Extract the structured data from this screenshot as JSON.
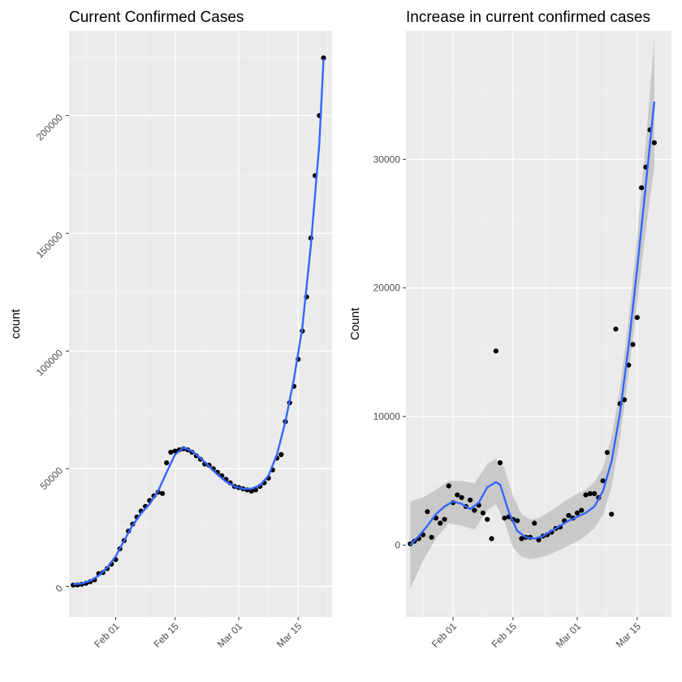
{
  "chart_data": [
    {
      "type": "scatter",
      "title": "Current Confirmed Cases",
      "xlabel": "",
      "ylabel": "count",
      "x_axis_type": "date",
      "xlim": [
        "2020-01-21",
        "2020-03-23"
      ],
      "ylim": [
        -13000,
        236000
      ],
      "x_ticks": [
        {
          "date": "2020-02-01",
          "label": "Feb 01"
        },
        {
          "date": "2020-02-15",
          "label": "Feb 15"
        },
        {
          "date": "2020-03-01",
          "label": "Mar 01"
        },
        {
          "date": "2020-03-15",
          "label": "Mar 15"
        }
      ],
      "y_ticks": [
        {
          "value": 0,
          "label": "0"
        },
        {
          "value": 50000,
          "label": "50000"
        },
        {
          "value": 100000,
          "label": "100000"
        },
        {
          "value": 150000,
          "label": "150000"
        },
        {
          "value": 200000,
          "label": "200000"
        }
      ],
      "background": "#ebebeb",
      "grid": true,
      "smooth_color": "#3366ff",
      "point_color": "#000000",
      "points": [
        [
          "2020-01-22",
          600
        ],
        [
          "2020-01-23",
          640
        ],
        [
          "2020-01-24",
          900
        ],
        [
          "2020-01-25",
          1350
        ],
        [
          "2020-01-26",
          2000
        ],
        [
          "2020-01-27",
          2800
        ],
        [
          "2020-01-28",
          5400
        ],
        [
          "2020-01-29",
          5900
        ],
        [
          "2020-01-30",
          7600
        ],
        [
          "2020-01-31",
          9500
        ],
        [
          "2020-02-01",
          11400
        ],
        [
          "2020-02-02",
          16000
        ],
        [
          "2020-02-03",
          19500
        ],
        [
          "2020-02-04",
          23500
        ],
        [
          "2020-02-05",
          26500
        ],
        [
          "2020-02-06",
          29500
        ],
        [
          "2020-02-07",
          32000
        ],
        [
          "2020-02-08",
          34000
        ],
        [
          "2020-02-09",
          36500
        ],
        [
          "2020-02-10",
          38500
        ],
        [
          "2020-02-11",
          40000
        ],
        [
          "2020-02-12",
          39500
        ],
        [
          "2020-02-13",
          52500
        ],
        [
          "2020-02-14",
          57000
        ],
        [
          "2020-02-15",
          57500
        ],
        [
          "2020-02-16",
          58000
        ],
        [
          "2020-02-17",
          58500
        ],
        [
          "2020-02-18",
          58000
        ],
        [
          "2020-02-19",
          57000
        ],
        [
          "2020-02-20",
          55500
        ],
        [
          "2020-02-21",
          54000
        ],
        [
          "2020-02-22",
          52000
        ],
        [
          "2020-02-23",
          51500
        ],
        [
          "2020-02-24",
          50000
        ],
        [
          "2020-02-25",
          48500
        ],
        [
          "2020-02-26",
          47000
        ],
        [
          "2020-02-27",
          45500
        ],
        [
          "2020-02-28",
          44000
        ],
        [
          "2020-02-29",
          42500
        ],
        [
          "2020-03-01",
          42000
        ],
        [
          "2020-03-02",
          41500
        ],
        [
          "2020-03-03",
          41000
        ],
        [
          "2020-03-04",
          40500
        ],
        [
          "2020-03-05",
          41000
        ],
        [
          "2020-03-06",
          42500
        ],
        [
          "2020-03-07",
          44000
        ],
        [
          "2020-03-08",
          46000
        ],
        [
          "2020-03-09",
          49500
        ],
        [
          "2020-03-10",
          54500
        ],
        [
          "2020-03-11",
          56000
        ],
        [
          "2020-03-12",
          70000
        ],
        [
          "2020-03-13",
          78000
        ],
        [
          "2020-03-14",
          85000
        ],
        [
          "2020-03-15",
          96500
        ],
        [
          "2020-03-16",
          108500
        ],
        [
          "2020-03-17",
          123000
        ],
        [
          "2020-03-18",
          148000
        ],
        [
          "2020-03-19",
          174500
        ],
        [
          "2020-03-20",
          200000
        ],
        [
          "2020-03-21",
          224500
        ]
      ],
      "smooth": [
        [
          "2020-01-22",
          1000
        ],
        [
          "2020-01-24",
          1200
        ],
        [
          "2020-01-26",
          2400
        ],
        [
          "2020-01-28",
          4600
        ],
        [
          "2020-01-30",
          8000
        ],
        [
          "2020-02-01",
          12800
        ],
        [
          "2020-02-03",
          19500
        ],
        [
          "2020-02-05",
          26000
        ],
        [
          "2020-02-07",
          31000
        ],
        [
          "2020-02-09",
          35000
        ],
        [
          "2020-02-11",
          40500
        ],
        [
          "2020-02-13",
          48500
        ],
        [
          "2020-02-15",
          56000
        ],
        [
          "2020-02-17",
          59000
        ],
        [
          "2020-02-19",
          57500
        ],
        [
          "2020-02-21",
          54500
        ],
        [
          "2020-02-23",
          51000
        ],
        [
          "2020-02-25",
          47500
        ],
        [
          "2020-02-27",
          44500
        ],
        [
          "2020-02-29",
          42500
        ],
        [
          "2020-03-02",
          41500
        ],
        [
          "2020-03-04",
          41500
        ],
        [
          "2020-03-06",
          43000
        ],
        [
          "2020-03-08",
          47000
        ],
        [
          "2020-03-10",
          56000
        ],
        [
          "2020-03-12",
          70000
        ],
        [
          "2020-03-14",
          88000
        ],
        [
          "2020-03-16",
          110000
        ],
        [
          "2020-03-18",
          145000
        ],
        [
          "2020-03-20",
          188000
        ],
        [
          "2020-03-21",
          224000
        ]
      ]
    },
    {
      "type": "scatter",
      "title": "Increase in current confirmed cases",
      "xlabel": "",
      "ylabel": "Count",
      "x_axis_type": "date",
      "xlim": [
        "2020-01-21",
        "2020-03-23"
      ],
      "ylim": [
        -5600,
        40000
      ],
      "x_ticks": [
        {
          "date": "2020-02-01",
          "label": "Feb 01"
        },
        {
          "date": "2020-02-15",
          "label": "Feb 15"
        },
        {
          "date": "2020-03-01",
          "label": "Mar 01"
        },
        {
          "date": "2020-03-15",
          "label": "Mar 15"
        }
      ],
      "y_ticks": [
        {
          "value": 0,
          "label": "0"
        },
        {
          "value": 10000,
          "label": "10000"
        },
        {
          "value": 20000,
          "label": "20000"
        },
        {
          "value": 30000,
          "label": "30000"
        }
      ],
      "background": "#ebebeb",
      "grid": true,
      "smooth_color": "#3366ff",
      "ribbon_color": "#bebebe",
      "point_color": "#000000",
      "points": [
        [
          "2020-01-22",
          100
        ],
        [
          "2020-01-23",
          300
        ],
        [
          "2020-01-24",
          500
        ],
        [
          "2020-01-25",
          800
        ],
        [
          "2020-01-26",
          2600
        ],
        [
          "2020-01-27",
          600
        ],
        [
          "2020-01-28",
          2100
        ],
        [
          "2020-01-29",
          1700
        ],
        [
          "2020-01-30",
          2000
        ],
        [
          "2020-01-31",
          4600
        ],
        [
          "2020-02-01",
          3300
        ],
        [
          "2020-02-02",
          3900
        ],
        [
          "2020-02-03",
          3700
        ],
        [
          "2020-02-04",
          3000
        ],
        [
          "2020-02-05",
          3500
        ],
        [
          "2020-02-06",
          2700
        ],
        [
          "2020-02-07",
          3100
        ],
        [
          "2020-02-08",
          2500
        ],
        [
          "2020-02-09",
          2000
        ],
        [
          "2020-02-10",
          500
        ],
        [
          "2020-02-11",
          15100
        ],
        [
          "2020-02-12",
          6400
        ],
        [
          "2020-02-13",
          2100
        ],
        [
          "2020-02-14",
          2200
        ],
        [
          "2020-02-15",
          2000
        ],
        [
          "2020-02-16",
          1900
        ],
        [
          "2020-02-17",
          500
        ],
        [
          "2020-02-18",
          600
        ],
        [
          "2020-02-19",
          600
        ],
        [
          "2020-02-20",
          1700
        ],
        [
          "2020-02-21",
          400
        ],
        [
          "2020-02-22",
          700
        ],
        [
          "2020-02-23",
          800
        ],
        [
          "2020-02-24",
          1000
        ],
        [
          "2020-02-25",
          1300
        ],
        [
          "2020-02-26",
          1400
        ],
        [
          "2020-02-27",
          1900
        ],
        [
          "2020-02-28",
          2300
        ],
        [
          "2020-02-29",
          2100
        ],
        [
          "2020-03-01",
          2500
        ],
        [
          "2020-03-02",
          2700
        ],
        [
          "2020-03-03",
          3900
        ],
        [
          "2020-03-04",
          4000
        ],
        [
          "2020-03-05",
          4000
        ],
        [
          "2020-03-06",
          3700
        ],
        [
          "2020-03-07",
          5000
        ],
        [
          "2020-03-08",
          7200
        ],
        [
          "2020-03-09",
          2400
        ],
        [
          "2020-03-10",
          16800
        ],
        [
          "2020-03-11",
          11000
        ],
        [
          "2020-03-12",
          11300
        ],
        [
          "2020-03-13",
          14000
        ],
        [
          "2020-03-14",
          15600
        ],
        [
          "2020-03-15",
          17700
        ],
        [
          "2020-03-16",
          27800
        ],
        [
          "2020-03-17",
          29400
        ],
        [
          "2020-03-18",
          32300
        ],
        [
          "2020-03-19",
          31300
        ]
      ],
      "smooth": [
        [
          "2020-01-22",
          0
        ],
        [
          "2020-01-24",
          700
        ],
        [
          "2020-01-26",
          1500
        ],
        [
          "2020-01-28",
          2400
        ],
        [
          "2020-01-30",
          3000
        ],
        [
          "2020-02-01",
          3400
        ],
        [
          "2020-02-03",
          3200
        ],
        [
          "2020-02-05",
          2800
        ],
        [
          "2020-02-07",
          3300
        ],
        [
          "2020-02-09",
          4500
        ],
        [
          "2020-02-11",
          4900
        ],
        [
          "2020-02-12",
          4700
        ],
        [
          "2020-02-14",
          2600
        ],
        [
          "2020-02-16",
          1100
        ],
        [
          "2020-02-18",
          600
        ],
        [
          "2020-02-20",
          500
        ],
        [
          "2020-02-22",
          700
        ],
        [
          "2020-02-24",
          1100
        ],
        [
          "2020-02-26",
          1500
        ],
        [
          "2020-02-28",
          1900
        ],
        [
          "2020-03-01",
          2200
        ],
        [
          "2020-03-03",
          2500
        ],
        [
          "2020-03-05",
          3000
        ],
        [
          "2020-03-07",
          4200
        ],
        [
          "2020-03-09",
          6500
        ],
        [
          "2020-03-11",
          10300
        ],
        [
          "2020-03-13",
          15500
        ],
        [
          "2020-03-15",
          21500
        ],
        [
          "2020-03-17",
          28000
        ],
        [
          "2020-03-19",
          34500
        ]
      ],
      "ribbon": [
        [
          "2020-01-22",
          -3400,
          3400
        ],
        [
          "2020-01-25",
          -1200,
          3700
        ],
        [
          "2020-01-28",
          500,
          4300
        ],
        [
          "2020-01-31",
          1700,
          5000
        ],
        [
          "2020-02-03",
          1500,
          5000
        ],
        [
          "2020-02-06",
          1200,
          4800
        ],
        [
          "2020-02-09",
          2700,
          6300
        ],
        [
          "2020-02-11",
          3200,
          6700
        ],
        [
          "2020-02-13",
          1800,
          6000
        ],
        [
          "2020-02-15",
          -200,
          3800
        ],
        [
          "2020-02-17",
          -900,
          2400
        ],
        [
          "2020-02-19",
          -1100,
          2000
        ],
        [
          "2020-02-21",
          -1000,
          2100
        ],
        [
          "2020-02-23",
          -800,
          2500
        ],
        [
          "2020-02-25",
          -500,
          2900
        ],
        [
          "2020-02-27",
          -200,
          3400
        ],
        [
          "2020-03-01",
          300,
          4000
        ],
        [
          "2020-03-03",
          700,
          4300
        ],
        [
          "2020-03-05",
          1300,
          4900
        ],
        [
          "2020-03-07",
          2300,
          6000
        ],
        [
          "2020-03-09",
          4500,
          8400
        ],
        [
          "2020-03-11",
          8300,
          12200
        ],
        [
          "2020-03-13",
          13300,
          17600
        ],
        [
          "2020-03-15",
          18800,
          24000
        ],
        [
          "2020-03-17",
          24500,
          31300
        ],
        [
          "2020-03-19",
          29400,
          39400
        ]
      ]
    }
  ]
}
